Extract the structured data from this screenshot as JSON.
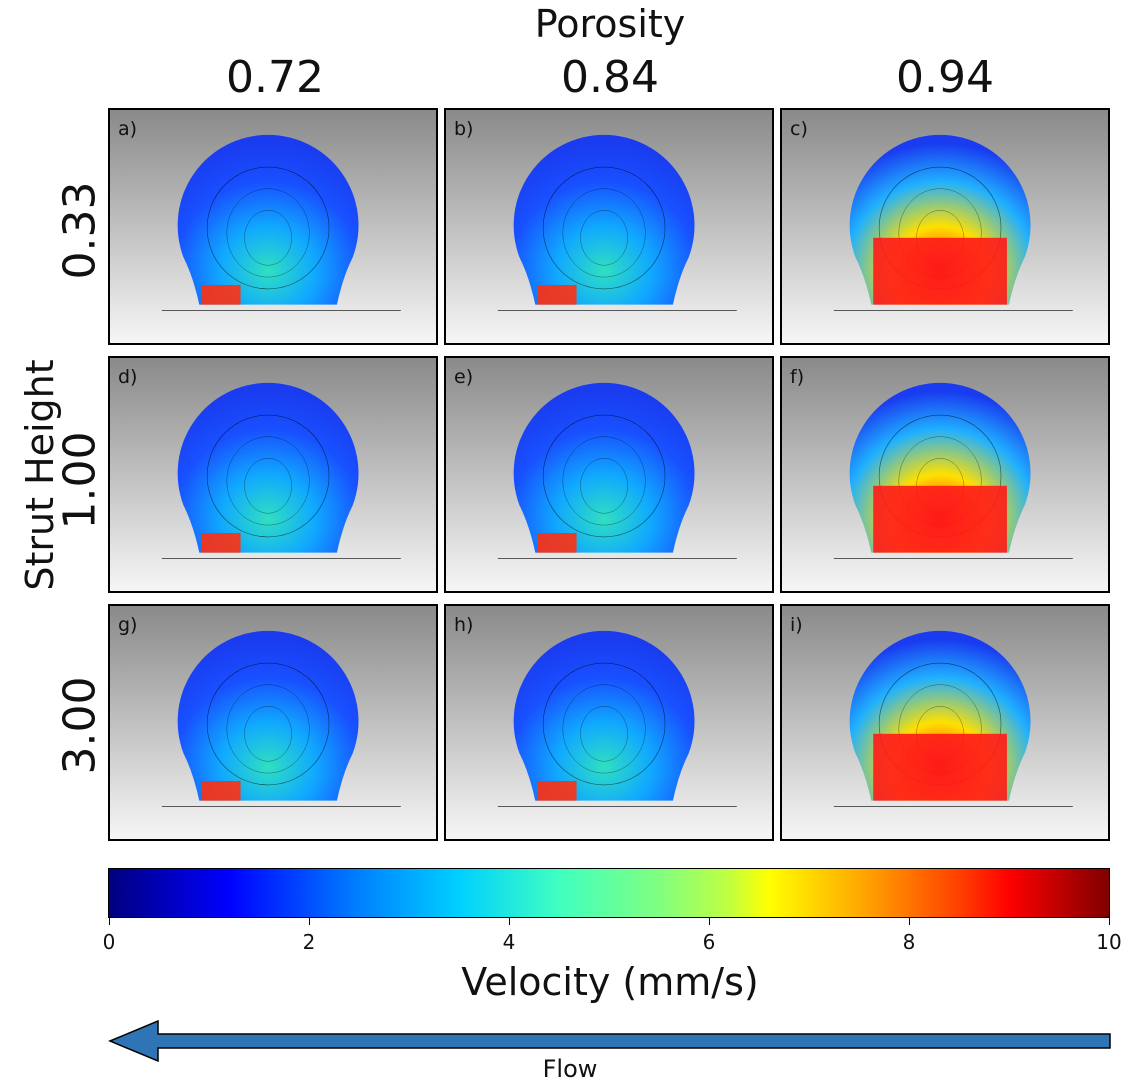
{
  "figure": {
    "title": "Porosity",
    "row_axis_label": "Strut Height",
    "columns": [
      "0.72",
      "0.84",
      "0.94"
    ],
    "rows": [
      "0.33",
      "1.00",
      "3.00"
    ],
    "panels": [
      "a)",
      "b)",
      "c)",
      "d)",
      "e)",
      "f)",
      "g)",
      "h)",
      "i)"
    ]
  },
  "colorbar": {
    "title": "Velocity (mm/s)",
    "ticks": [
      "0",
      "2",
      "4",
      "6",
      "8",
      "10"
    ],
    "range": [
      0,
      10
    ]
  },
  "flow": {
    "label": "Flow",
    "direction": "left",
    "color": "#2f75b5"
  }
}
